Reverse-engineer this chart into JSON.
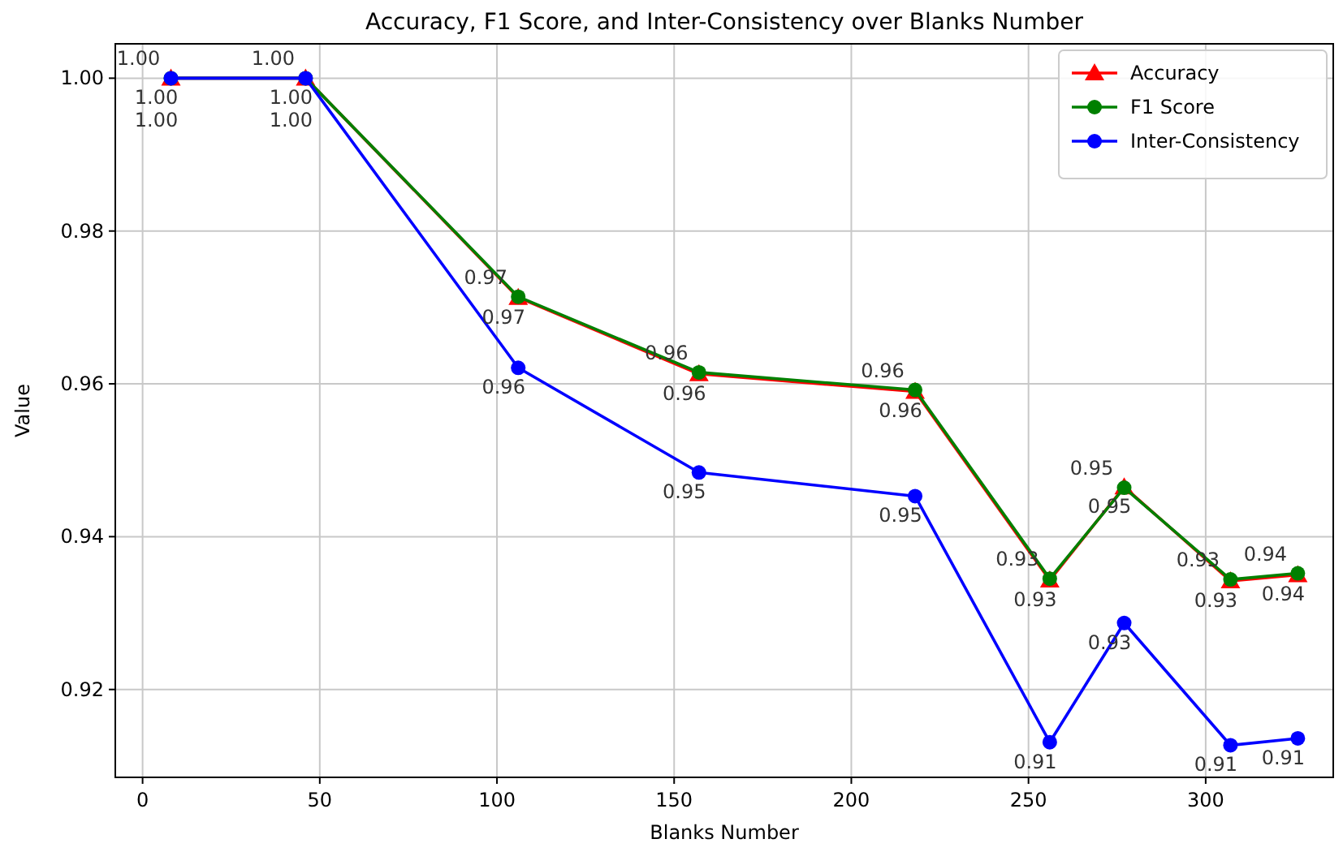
{
  "chart_data": {
    "type": "line",
    "title": "Accuracy, F1 Score, and Inter-Consistency over Blanks Number",
    "xlabel": "Blanks Number",
    "ylabel": "Value",
    "x": [
      8,
      46,
      106,
      157,
      218,
      256,
      277,
      307,
      326
    ],
    "xlim": [
      -7.7,
      336
    ],
    "xticks": [
      0,
      50,
      100,
      150,
      200,
      250,
      300
    ],
    "ylim": [
      0.9085,
      1.0045
    ],
    "yticks": [
      0.92,
      0.94,
      0.96,
      0.98,
      {
        "value": 1.0,
        "label": "1.00"
      }
    ],
    "grid": true,
    "legend": "top right",
    "line_style": "solid",
    "series": [
      {
        "name": "Accuracy",
        "color": "#ff0000",
        "marker": "triangle",
        "values": [
          1.0,
          1.0,
          0.9713,
          0.9613,
          0.959,
          0.9343,
          0.9465,
          0.9342,
          0.935
        ],
        "value_labels": [
          "1.00",
          "1.00",
          "0.97",
          "0.96",
          "0.96",
          "0.93",
          "0.95",
          "0.93",
          "0.94"
        ]
      },
      {
        "name": "F1 Score",
        "color": "#008000",
        "marker": "circle",
        "values": [
          1.0,
          1.0,
          0.9714,
          0.9615,
          0.9592,
          0.9345,
          0.9464,
          0.9344,
          0.9352
        ],
        "value_labels": [
          "1.00",
          "1.00",
          "0.97",
          "0.96",
          "0.96",
          "0.93",
          "0.95",
          "0.93",
          "0.94"
        ]
      },
      {
        "name": "Inter-Consistency",
        "color": "#0000ff",
        "marker": "circle",
        "values": [
          1.0,
          1.0,
          0.9621,
          0.9484,
          0.9453,
          0.9131,
          0.9287,
          0.9127,
          0.9136
        ],
        "value_labels": [
          "1.00",
          "1.00",
          "0.96",
          "0.95",
          "0.95",
          "0.91",
          "0.93",
          "0.91",
          "0.91"
        ]
      }
    ]
  }
}
